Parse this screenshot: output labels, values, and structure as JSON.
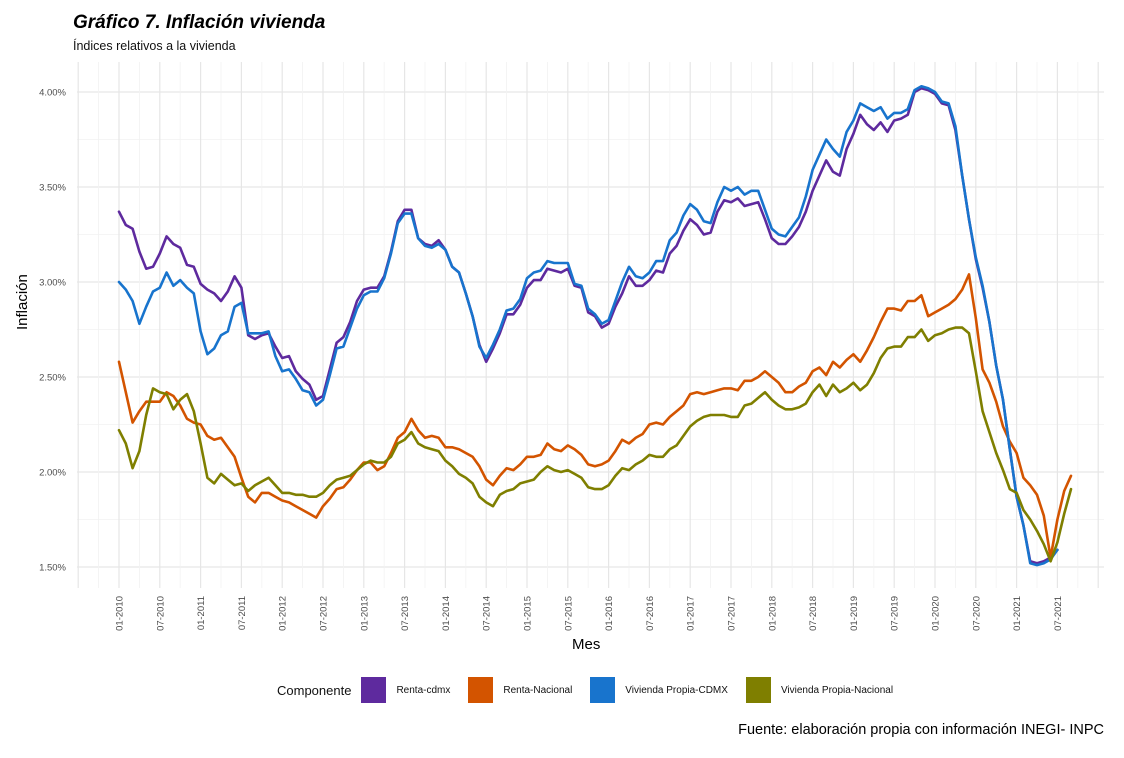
{
  "title": "Gráfico 7. Inflación vivienda",
  "subtitle": "Índices relativos a la vivienda",
  "source": "Fuente: elaboración propia con información INEGI- INPC",
  "chart_data": {
    "type": "line",
    "title": "Gráfico 7. Inflación vivienda",
    "subtitle": "Índices relativos a la vivienda",
    "xlabel": "Mes",
    "ylabel": "Inflación",
    "ylim": [
      1.4,
      4.15
    ],
    "grid": true,
    "legend_position": "bottom",
    "legend_title": "Componente",
    "y_ticks": [
      1.5,
      2.0,
      2.5,
      3.0,
      3.5,
      4.0
    ],
    "y_tick_labels": [
      "1.50%",
      "2.00%",
      "2.50%",
      "3.00%",
      "3.50%",
      "4.00%"
    ],
    "x_start": "01-2010",
    "x_end": "07-2021",
    "x_tick_labels": [
      "01-2010",
      "07-2010",
      "01-2011",
      "07-2011",
      "01-2012",
      "07-2012",
      "01-2013",
      "07-2013",
      "01-2014",
      "07-2014",
      "01-2015",
      "07-2015",
      "01-2016",
      "07-2016",
      "01-2017",
      "07-2017",
      "01-2018",
      "07-2018",
      "01-2019",
      "07-2019",
      "01-2020",
      "07-2020",
      "01-2021",
      "07-2021"
    ],
    "series": [
      {
        "name": "Renta-cdmx",
        "color": "#5E2A9E",
        "values": [
          3.37,
          3.3,
          3.28,
          3.16,
          3.07,
          3.08,
          3.15,
          3.24,
          3.2,
          3.18,
          3.09,
          3.08,
          2.99,
          2.96,
          2.94,
          2.9,
          2.95,
          3.03,
          2.97,
          2.72,
          2.7,
          2.72,
          2.73,
          2.66,
          2.6,
          2.61,
          2.53,
          2.49,
          2.46,
          2.38,
          2.4,
          2.54,
          2.68,
          2.71,
          2.79,
          2.9,
          2.96,
          2.97,
          2.97,
          3.03,
          3.16,
          3.32,
          3.38,
          3.38,
          3.23,
          3.2,
          3.19,
          3.22,
          3.17,
          3.08,
          3.05,
          2.94,
          2.82,
          2.67,
          2.58,
          2.65,
          2.73,
          2.83,
          2.83,
          2.88,
          2.97,
          3.01,
          3.01,
          3.07,
          3.06,
          3.05,
          3.07,
          2.98,
          2.97,
          2.84,
          2.82,
          2.76,
          2.78,
          2.87,
          2.94,
          3.03,
          2.98,
          2.98,
          3.01,
          3.06,
          3.05,
          3.15,
          3.19,
          3.27,
          3.33,
          3.3,
          3.25,
          3.26,
          3.37,
          3.43,
          3.42,
          3.44,
          3.4,
          3.41,
          3.42,
          3.33,
          3.23,
          3.2,
          3.2,
          3.24,
          3.29,
          3.37,
          3.48,
          3.56,
          3.64,
          3.58,
          3.56,
          3.7,
          3.78,
          3.88,
          3.83,
          3.8,
          3.84,
          3.79,
          3.85,
          3.86,
          3.88,
          4.0,
          4.02,
          4.01,
          3.99,
          3.94,
          3.93,
          3.8,
          3.56,
          3.33,
          3.12,
          2.97,
          2.79,
          2.56,
          2.38,
          2.12,
          1.87,
          1.72,
          1.53,
          1.52,
          1.53,
          1.55,
          1.59
        ]
      },
      {
        "name": "Renta-Nacional",
        "color": "#D35400",
        "values": [
          2.58,
          2.42,
          2.26,
          2.32,
          2.37,
          2.37,
          2.37,
          2.42,
          2.4,
          2.35,
          2.28,
          2.26,
          2.25,
          2.19,
          2.17,
          2.18,
          2.13,
          2.08,
          1.97,
          1.87,
          1.84,
          1.89,
          1.89,
          1.87,
          1.85,
          1.84,
          1.82,
          1.8,
          1.78,
          1.76,
          1.82,
          1.86,
          1.91,
          1.92,
          1.96,
          2.01,
          2.05,
          2.05,
          2.01,
          2.03,
          2.1,
          2.18,
          2.21,
          2.28,
          2.22,
          2.18,
          2.19,
          2.18,
          2.13,
          2.13,
          2.12,
          2.1,
          2.08,
          2.03,
          1.96,
          1.93,
          1.98,
          2.02,
          2.01,
          2.04,
          2.08,
          2.08,
          2.09,
          2.15,
          2.12,
          2.11,
          2.14,
          2.12,
          2.09,
          2.04,
          2.03,
          2.04,
          2.06,
          2.11,
          2.17,
          2.15,
          2.18,
          2.2,
          2.25,
          2.26,
          2.25,
          2.29,
          2.32,
          2.35,
          2.41,
          2.42,
          2.41,
          2.42,
          2.43,
          2.44,
          2.44,
          2.43,
          2.48,
          2.48,
          2.5,
          2.53,
          2.5,
          2.47,
          2.42,
          2.42,
          2.45,
          2.47,
          2.53,
          2.55,
          2.51,
          2.58,
          2.55,
          2.59,
          2.62,
          2.58,
          2.64,
          2.71,
          2.79,
          2.86,
          2.86,
          2.85,
          2.9,
          2.9,
          2.93,
          2.82,
          2.84,
          2.86,
          2.88,
          2.91,
          2.96,
          3.04,
          2.81,
          2.54,
          2.47,
          2.37,
          2.24,
          2.16,
          2.1,
          1.97,
          1.93,
          1.88,
          1.77,
          1.55,
          1.75,
          1.9,
          1.98
        ]
      },
      {
        "name": "Vivienda Propia-CDMX",
        "color": "#1874CD",
        "values": [
          3.0,
          2.96,
          2.9,
          2.78,
          2.87,
          2.95,
          2.97,
          3.05,
          2.98,
          3.01,
          2.97,
          2.94,
          2.74,
          2.62,
          2.65,
          2.72,
          2.74,
          2.87,
          2.89,
          2.73,
          2.73,
          2.73,
          2.74,
          2.61,
          2.53,
          2.54,
          2.49,
          2.43,
          2.42,
          2.35,
          2.38,
          2.51,
          2.65,
          2.66,
          2.76,
          2.86,
          2.93,
          2.95,
          2.95,
          3.02,
          3.15,
          3.31,
          3.36,
          3.36,
          3.23,
          3.19,
          3.18,
          3.2,
          3.17,
          3.08,
          3.05,
          2.94,
          2.82,
          2.66,
          2.6,
          2.67,
          2.75,
          2.85,
          2.86,
          2.91,
          3.02,
          3.05,
          3.06,
          3.11,
          3.1,
          3.1,
          3.1,
          2.99,
          2.98,
          2.86,
          2.83,
          2.78,
          2.8,
          2.9,
          3.0,
          3.08,
          3.03,
          3.02,
          3.05,
          3.11,
          3.11,
          3.22,
          3.26,
          3.35,
          3.41,
          3.38,
          3.32,
          3.31,
          3.42,
          3.5,
          3.48,
          3.5,
          3.46,
          3.48,
          3.48,
          3.38,
          3.28,
          3.25,
          3.24,
          3.29,
          3.34,
          3.45,
          3.59,
          3.67,
          3.75,
          3.7,
          3.66,
          3.79,
          3.85,
          3.94,
          3.92,
          3.9,
          3.92,
          3.86,
          3.89,
          3.89,
          3.91,
          4.01,
          4.03,
          4.02,
          4.0,
          3.95,
          3.94,
          3.82,
          3.56,
          3.33,
          3.13,
          2.98,
          2.79,
          2.56,
          2.38,
          2.12,
          1.87,
          1.72,
          1.52,
          1.51,
          1.52,
          1.54,
          1.59
        ]
      },
      {
        "name": "Vivienda Propia-Nacional",
        "color": "#7F7F00",
        "values": [
          2.22,
          2.15,
          2.02,
          2.11,
          2.3,
          2.44,
          2.42,
          2.41,
          2.33,
          2.38,
          2.41,
          2.32,
          2.15,
          1.97,
          1.94,
          1.99,
          1.96,
          1.93,
          1.94,
          1.9,
          1.93,
          1.95,
          1.97,
          1.93,
          1.89,
          1.89,
          1.88,
          1.88,
          1.87,
          1.87,
          1.89,
          1.93,
          1.96,
          1.97,
          1.98,
          2.01,
          2.04,
          2.06,
          2.05,
          2.05,
          2.08,
          2.15,
          2.17,
          2.21,
          2.15,
          2.13,
          2.12,
          2.11,
          2.06,
          2.03,
          1.99,
          1.97,
          1.94,
          1.87,
          1.84,
          1.82,
          1.88,
          1.9,
          1.91,
          1.94,
          1.95,
          1.96,
          2.0,
          2.03,
          2.01,
          2.0,
          2.01,
          1.99,
          1.97,
          1.92,
          1.91,
          1.91,
          1.93,
          1.98,
          2.02,
          2.01,
          2.04,
          2.06,
          2.09,
          2.08,
          2.08,
          2.12,
          2.14,
          2.19,
          2.24,
          2.27,
          2.29,
          2.3,
          2.3,
          2.3,
          2.29,
          2.29,
          2.35,
          2.36,
          2.39,
          2.42,
          2.38,
          2.35,
          2.33,
          2.33,
          2.34,
          2.36,
          2.42,
          2.46,
          2.4,
          2.46,
          2.42,
          2.44,
          2.47,
          2.43,
          2.46,
          2.52,
          2.6,
          2.65,
          2.66,
          2.66,
          2.71,
          2.71,
          2.75,
          2.69,
          2.72,
          2.73,
          2.75,
          2.76,
          2.76,
          2.73,
          2.53,
          2.32,
          2.21,
          2.1,
          2.01,
          1.91,
          1.89,
          1.8,
          1.75,
          1.69,
          1.62,
          1.53,
          1.63,
          1.78,
          1.91
        ]
      }
    ]
  }
}
